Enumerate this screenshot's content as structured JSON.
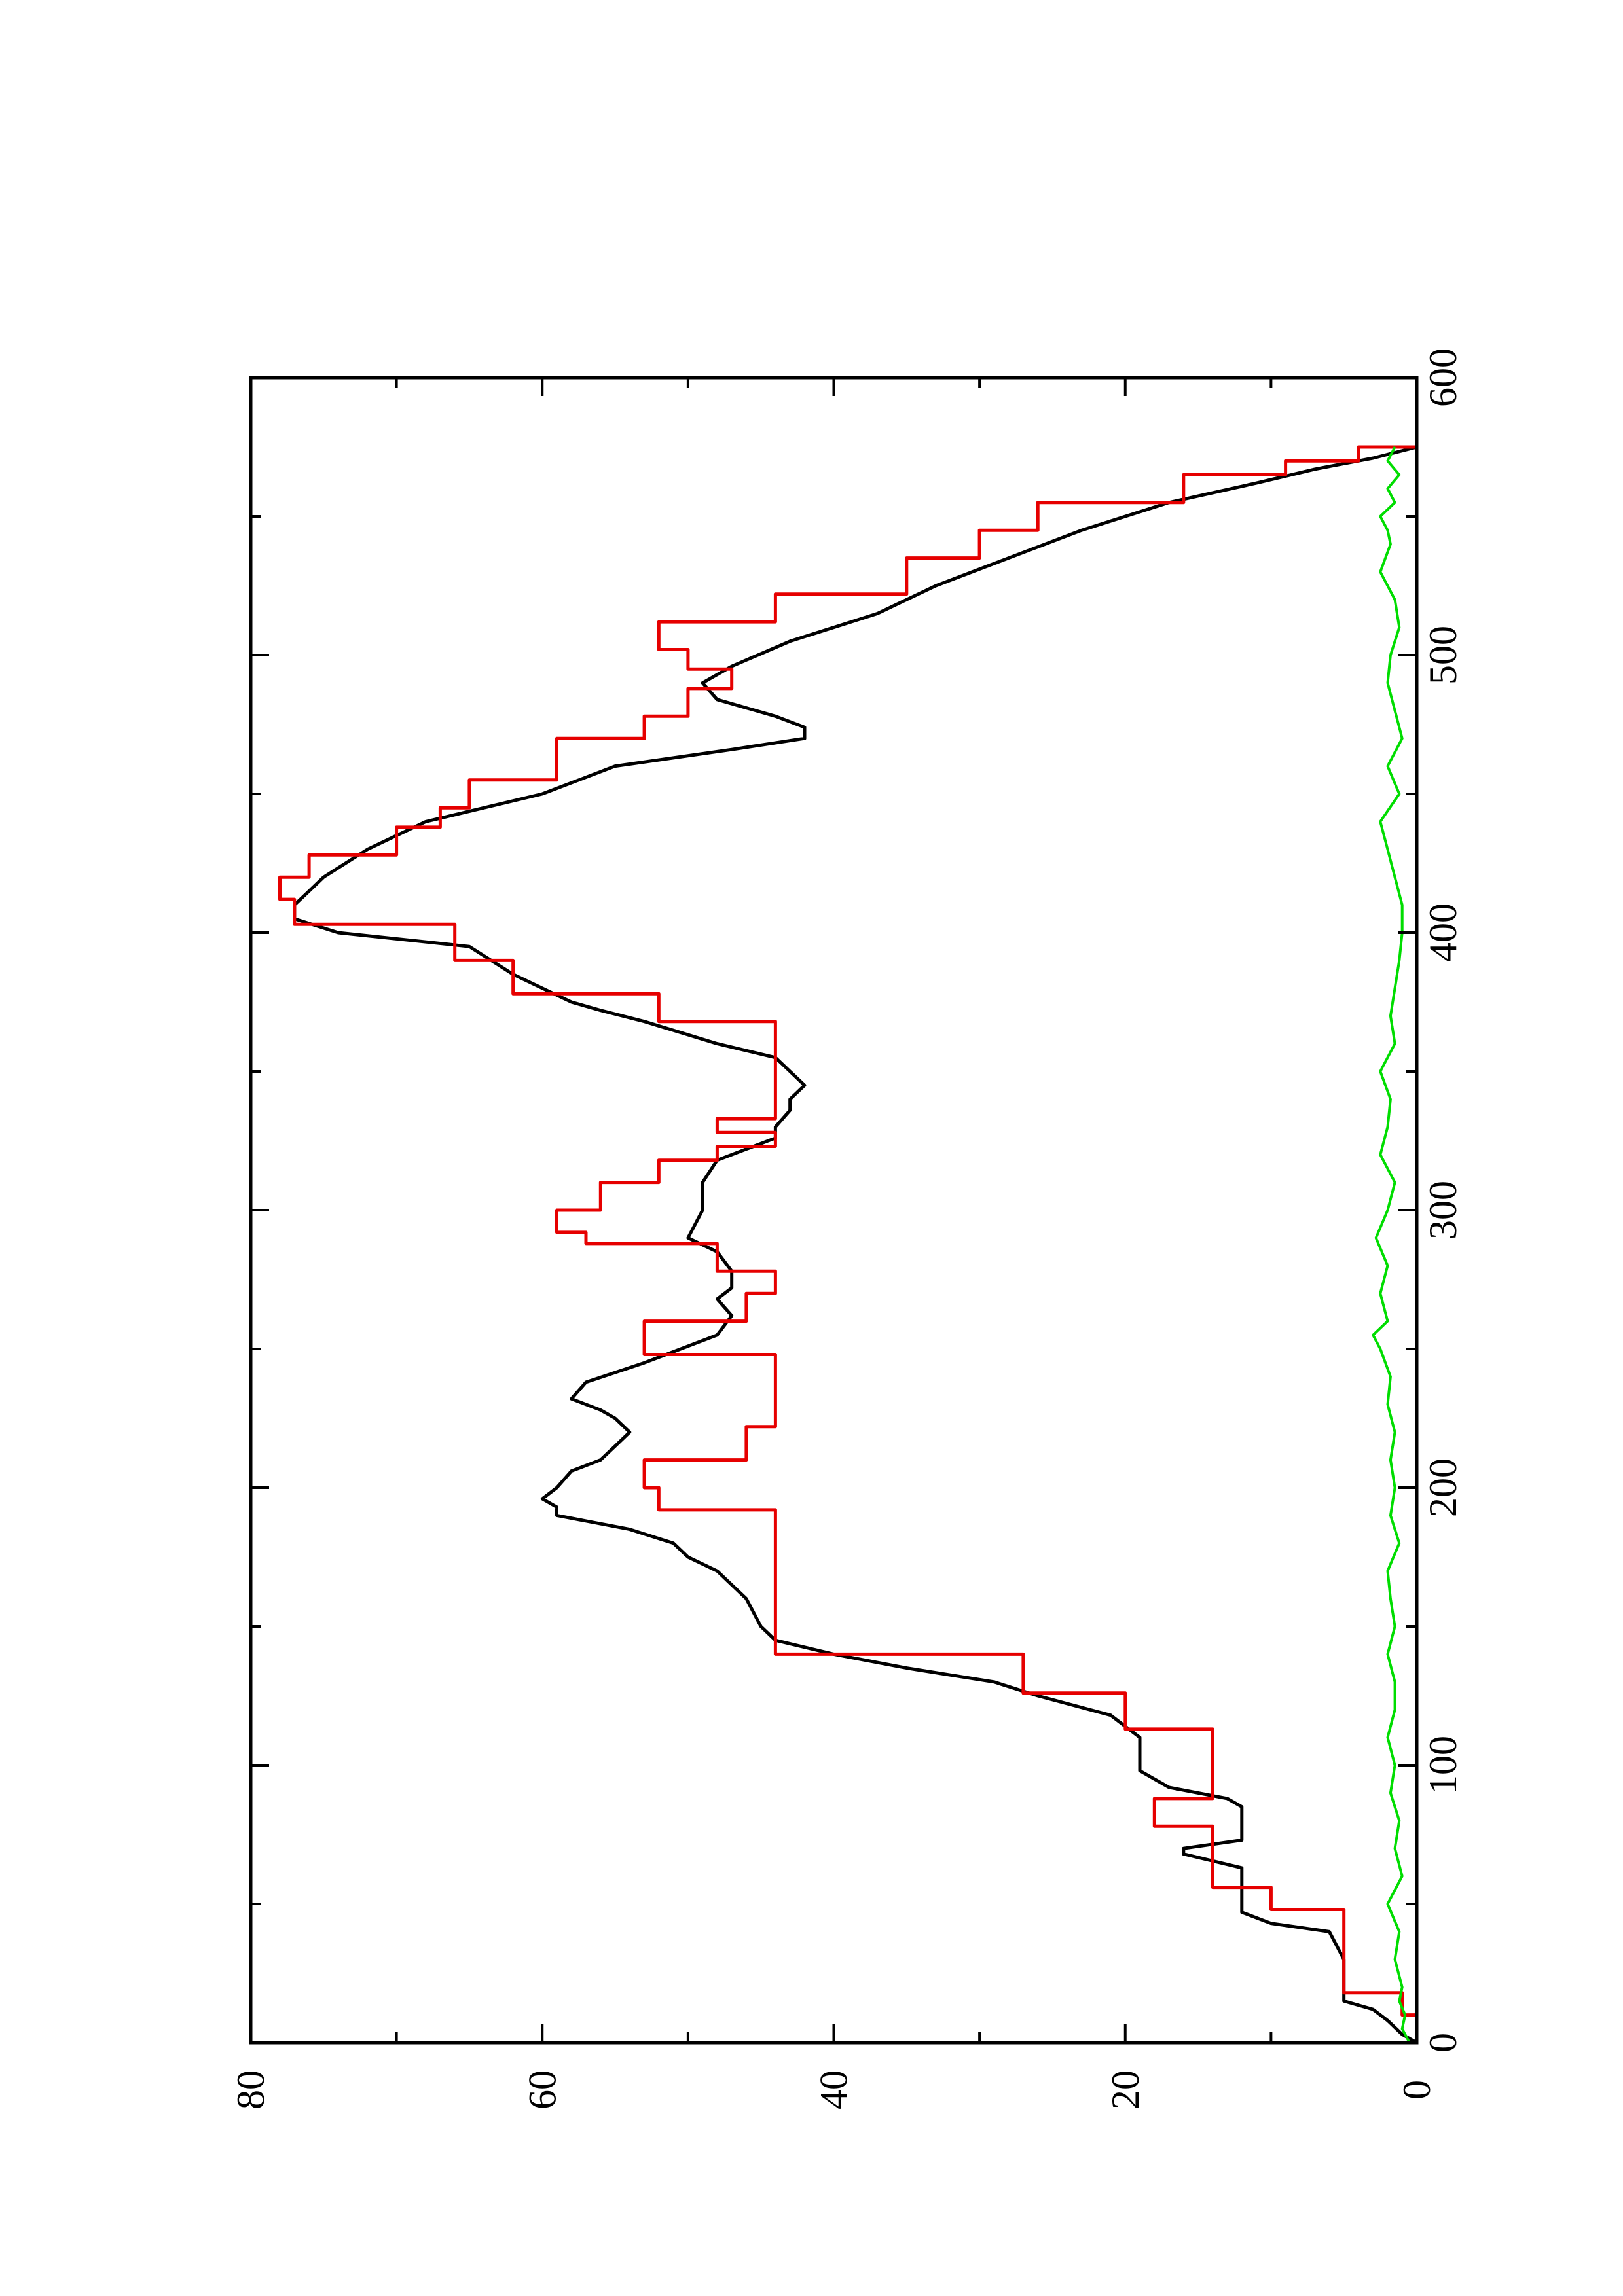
{
  "chart_data": {
    "type": "line",
    "orientation": "rotated 90 degrees counter-clockwise (x axis runs bottom-to-top on the page, y axis runs right-to-left)",
    "title": "",
    "xlabel": "",
    "ylabel": "",
    "xlim": [
      0,
      600
    ],
    "ylim": [
      0,
      80
    ],
    "x_major_ticks": [
      0,
      100,
      200,
      300,
      400,
      500,
      600
    ],
    "x_minor_ticks": [
      50,
      150,
      250,
      350,
      450,
      550
    ],
    "y_major_ticks": [
      0,
      20,
      40,
      60,
      80
    ],
    "y_minor_ticks": [
      10,
      30,
      50,
      70
    ],
    "x_tick_labels": [
      "0",
      "100",
      "200",
      "300",
      "400",
      "500",
      "600"
    ],
    "y_tick_labels": [
      "0",
      "20",
      "40",
      "60",
      "80"
    ],
    "grid": false,
    "legend": "none",
    "series": [
      {
        "color": "#000000",
        "style": "smooth",
        "x": [
          0,
          3,
          8,
          12,
          15,
          20,
          30,
          40,
          43,
          47,
          50,
          56,
          63,
          68,
          70,
          73,
          78,
          80,
          85,
          88,
          92,
          98,
          105,
          110,
          118,
          125,
          130,
          135,
          140,
          145,
          150,
          160,
          170,
          175,
          180,
          185,
          190,
          193,
          196,
          200,
          206,
          210,
          215,
          220,
          225,
          228,
          232,
          238,
          245,
          255,
          262,
          268,
          272,
          278,
          285,
          290,
          300,
          310,
          318,
          322,
          326,
          330,
          336,
          340,
          345,
          350,
          355,
          360,
          368,
          372,
          375,
          385,
          395,
          400,
          405,
          410,
          415,
          420,
          430,
          440,
          450,
          460,
          466,
          470,
          474,
          478,
          484,
          490,
          496,
          505,
          515,
          525,
          535,
          545,
          555,
          562,
          567,
          571,
          575
        ],
        "y": [
          0,
          1,
          2,
          3,
          5,
          5,
          5,
          6,
          10,
          12,
          12,
          12,
          12,
          16,
          16,
          12,
          12,
          12,
          12,
          13,
          17,
          19,
          19,
          19,
          21,
          26,
          29,
          35,
          40,
          44,
          45,
          46,
          48,
          50,
          51,
          54,
          59,
          59,
          60,
          59,
          58,
          56,
          55,
          54,
          55,
          56,
          58,
          57,
          53,
          48,
          47,
          48,
          47,
          47,
          48,
          50,
          49,
          49,
          48,
          46,
          44,
          44,
          43,
          43,
          42,
          43,
          44,
          48,
          53,
          56,
          58,
          62,
          65,
          74,
          77,
          77,
          76,
          75,
          72,
          68,
          60,
          55,
          47,
          42,
          42,
          44,
          48,
          49,
          47,
          43,
          37,
          33,
          28,
          23,
          17,
          11,
          7,
          3,
          0
        ]
      },
      {
        "color": "#e60000",
        "style": "step",
        "x": [
          0,
          5,
          10,
          18,
          43,
          48,
          56,
          64,
          78,
          88,
          98,
          113,
          118,
          126,
          140,
          148,
          175,
          180,
          192,
          200,
          210,
          222,
          237,
          248,
          260,
          270,
          278,
          288,
          292,
          300,
          310,
          318,
          323,
          328,
          333,
          345,
          358,
          368,
          378,
          390,
          403,
          412,
          420,
          428,
          438,
          445,
          455,
          470,
          478,
          488,
          495,
          502,
          512,
          522,
          535,
          545,
          555,
          565,
          570,
          575
        ],
        "y": [
          0,
          0,
          1,
          5,
          5,
          10,
          14,
          14,
          18,
          14,
          14,
          20,
          20,
          27,
          44,
          44,
          44,
          44,
          52,
          53,
          46,
          44,
          44,
          53,
          46,
          44,
          48,
          57,
          59,
          56,
          52,
          48,
          44,
          48,
          44,
          44,
          44,
          52,
          62,
          66,
          77,
          78,
          76,
          70,
          67,
          65,
          59,
          53,
          50,
          47,
          50,
          52,
          44,
          35,
          30,
          26,
          16,
          9,
          4,
          0
        ]
      },
      {
        "color": "#00dd00",
        "style": "noise",
        "description": "residual trace fluctuating near 0 (roughly 0 to 3) across the full x range",
        "x": [
          0,
          5,
          10,
          15,
          20,
          30,
          40,
          50,
          60,
          70,
          80,
          90,
          100,
          110,
          120,
          130,
          140,
          150,
          160,
          170,
          180,
          190,
          200,
          210,
          220,
          230,
          240,
          250,
          255,
          260,
          270,
          280,
          290,
          300,
          310,
          320,
          330,
          340,
          350,
          360,
          370,
          380,
          390,
          400,
          410,
          420,
          430,
          440,
          450,
          460,
          470,
          480,
          490,
          500,
          510,
          520,
          530,
          540,
          545,
          550,
          555,
          560,
          565,
          570,
          575
        ],
        "y": [
          0.5,
          1,
          0.8,
          1.2,
          1.0,
          1.5,
          1.2,
          2.0,
          1.0,
          1.5,
          1.2,
          1.8,
          1.5,
          2.0,
          1.5,
          1.5,
          2.0,
          1.5,
          1.8,
          2.0,
          1.2,
          1.8,
          1.5,
          1.8,
          1.5,
          2.0,
          1.8,
          2.5,
          3.0,
          2.0,
          2.5,
          2.0,
          2.8,
          2.0,
          1.5,
          2.5,
          2.0,
          1.8,
          2.5,
          1.5,
          1.8,
          1.5,
          1.2,
          1.0,
          1.0,
          1.5,
          2.0,
          2.5,
          1.2,
          2.0,
          1.0,
          1.5,
          2.0,
          1.8,
          1.2,
          1.5,
          2.5,
          1.8,
          2.0,
          2.5,
          1.5,
          2.0,
          1.2,
          2.0,
          1.5
        ]
      }
    ]
  }
}
